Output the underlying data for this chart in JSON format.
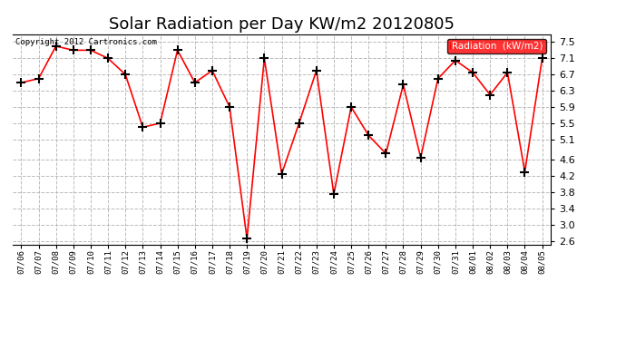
{
  "title": "Solar Radiation per Day KW/m2 20120805",
  "copyright_text": "Copyright 2012 Cartronics.com",
  "legend_label": "Radiation  (kW/m2)",
  "dates": [
    "07/06",
    "07/07",
    "07/08",
    "07/09",
    "07/10",
    "07/11",
    "07/12",
    "07/13",
    "07/14",
    "07/15",
    "07/16",
    "07/17",
    "07/18",
    "07/19",
    "07/20",
    "07/21",
    "07/22",
    "07/23",
    "07/24",
    "07/25",
    "07/26",
    "07/27",
    "07/28",
    "07/29",
    "07/30",
    "07/31",
    "08/01",
    "08/02",
    "08/03",
    "08/04",
    "08/05"
  ],
  "values": [
    6.5,
    6.6,
    7.4,
    7.3,
    7.3,
    7.1,
    6.7,
    5.4,
    5.5,
    7.3,
    6.5,
    6.8,
    5.9,
    2.65,
    7.1,
    4.25,
    5.5,
    6.8,
    3.75,
    5.9,
    5.2,
    4.75,
    6.45,
    4.65,
    6.6,
    7.05,
    6.75,
    6.2,
    6.75,
    4.3,
    7.1
  ],
  "line_color": "red",
  "marker": "+",
  "marker_color": "black",
  "background_color": "white",
  "grid_color": "#bbbbbb",
  "ylim": [
    2.5,
    7.7
  ],
  "yticks": [
    2.6,
    3.0,
    3.4,
    3.8,
    4.2,
    4.6,
    5.1,
    5.5,
    5.9,
    6.3,
    6.7,
    7.1,
    7.5
  ],
  "title_fontsize": 13,
  "legend_bg": "red",
  "legend_text_color": "white",
  "figwidth": 6.9,
  "figheight": 3.75,
  "dpi": 100
}
